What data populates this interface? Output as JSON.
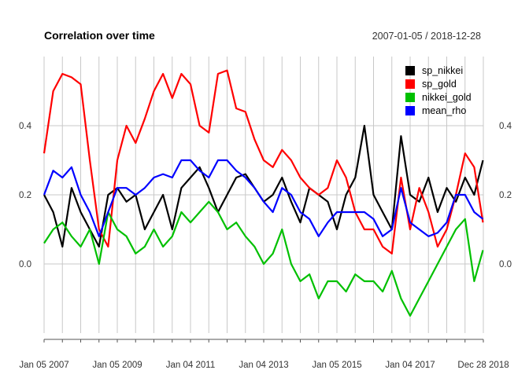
{
  "chart_data": {
    "type": "line",
    "title": "Correlation over time",
    "subtitle": "2007-01-05 / 2018-12-28",
    "x_start": "2007-01-05",
    "x_end": "2018-12-28",
    "x_tick_labels": [
      "Jan 05 2007",
      "Jan 05 2009",
      "Jan 04 2011",
      "Jan 04 2013",
      "Jan 05 2015",
      "Jan 04 2017",
      "Dec 28 2018"
    ],
    "x_tick_years": [
      2007.0,
      2007.5,
      2008.0,
      2008.5,
      2009.0,
      2009.5,
      2010.0,
      2010.5,
      2011.0,
      2011.5,
      2012.0,
      2012.5,
      2013.0,
      2013.5,
      2014.0,
      2014.5,
      2015.0,
      2015.5,
      2016.0,
      2016.5,
      2017.0,
      2017.5,
      2018.0,
      2018.5,
      2019.0
    ],
    "ylim": [
      -0.2,
      0.6
    ],
    "y_ticks": [
      0.0,
      0.2,
      0.4
    ],
    "y_tick_labels": [
      "0.0",
      "0.2",
      "0.4"
    ],
    "grid": true,
    "legend_position": "top-right",
    "series": [
      {
        "name": "sp_nikkei",
        "color": "#000000",
        "x": [
          2007.0,
          2007.25,
          2007.5,
          2007.75,
          2008.0,
          2008.25,
          2008.5,
          2008.75,
          2009.0,
          2009.25,
          2009.5,
          2009.75,
          2010.0,
          2010.25,
          2010.5,
          2010.75,
          2011.0,
          2011.25,
          2011.5,
          2011.75,
          2012.0,
          2012.25,
          2012.5,
          2012.75,
          2013.0,
          2013.25,
          2013.5,
          2013.75,
          2014.0,
          2014.25,
          2014.5,
          2014.75,
          2015.0,
          2015.25,
          2015.5,
          2015.75,
          2016.0,
          2016.25,
          2016.5,
          2016.75,
          2017.0,
          2017.25,
          2017.5,
          2017.75,
          2018.0,
          2018.25,
          2018.5,
          2018.75,
          2018.99
        ],
        "y": [
          0.2,
          0.15,
          0.05,
          0.22,
          0.15,
          0.1,
          0.05,
          0.2,
          0.22,
          0.18,
          0.2,
          0.1,
          0.15,
          0.2,
          0.1,
          0.22,
          0.25,
          0.28,
          0.22,
          0.15,
          0.2,
          0.25,
          0.26,
          0.22,
          0.18,
          0.2,
          0.25,
          0.18,
          0.12,
          0.22,
          0.2,
          0.18,
          0.1,
          0.2,
          0.25,
          0.4,
          0.2,
          0.15,
          0.1,
          0.37,
          0.2,
          0.18,
          0.25,
          0.15,
          0.22,
          0.18,
          0.25,
          0.2,
          0.3
        ]
      },
      {
        "name": "sp_gold",
        "color": "#ff0000",
        "x": [
          2007.0,
          2007.25,
          2007.5,
          2007.75,
          2008.0,
          2008.25,
          2008.5,
          2008.75,
          2009.0,
          2009.25,
          2009.5,
          2009.75,
          2010.0,
          2010.25,
          2010.5,
          2010.75,
          2011.0,
          2011.25,
          2011.5,
          2011.75,
          2012.0,
          2012.25,
          2012.5,
          2012.75,
          2013.0,
          2013.25,
          2013.5,
          2013.75,
          2014.0,
          2014.25,
          2014.5,
          2014.75,
          2015.0,
          2015.25,
          2015.5,
          2015.75,
          2016.0,
          2016.25,
          2016.5,
          2016.75,
          2017.0,
          2017.25,
          2017.5,
          2017.75,
          2018.0,
          2018.25,
          2018.5,
          2018.75,
          2018.99
        ],
        "y": [
          0.32,
          0.5,
          0.55,
          0.54,
          0.52,
          0.3,
          0.1,
          0.05,
          0.3,
          0.4,
          0.35,
          0.42,
          0.5,
          0.55,
          0.48,
          0.55,
          0.52,
          0.4,
          0.38,
          0.55,
          0.56,
          0.45,
          0.44,
          0.36,
          0.3,
          0.28,
          0.33,
          0.3,
          0.25,
          0.22,
          0.2,
          0.22,
          0.3,
          0.25,
          0.15,
          0.1,
          0.1,
          0.05,
          0.03,
          0.25,
          0.1,
          0.22,
          0.15,
          0.05,
          0.1,
          0.2,
          0.32,
          0.28,
          0.12
        ]
      },
      {
        "name": "nikkei_gold",
        "color": "#00c000",
        "x": [
          2007.0,
          2007.25,
          2007.5,
          2007.75,
          2008.0,
          2008.25,
          2008.5,
          2008.75,
          2009.0,
          2009.25,
          2009.5,
          2009.75,
          2010.0,
          2010.25,
          2010.5,
          2010.75,
          2011.0,
          2011.25,
          2011.5,
          2011.75,
          2012.0,
          2012.25,
          2012.5,
          2012.75,
          2013.0,
          2013.25,
          2013.5,
          2013.75,
          2014.0,
          2014.25,
          2014.5,
          2014.75,
          2015.0,
          2015.25,
          2015.5,
          2015.75,
          2016.0,
          2016.25,
          2016.5,
          2016.75,
          2017.0,
          2017.25,
          2017.5,
          2017.75,
          2018.0,
          2018.25,
          2018.5,
          2018.75,
          2018.99
        ],
        "y": [
          0.06,
          0.1,
          0.12,
          0.08,
          0.05,
          0.1,
          0.0,
          0.15,
          0.1,
          0.08,
          0.03,
          0.05,
          0.1,
          0.05,
          0.08,
          0.15,
          0.12,
          0.15,
          0.18,
          0.15,
          0.1,
          0.12,
          0.08,
          0.05,
          0.0,
          0.03,
          0.1,
          0.0,
          -0.05,
          -0.03,
          -0.1,
          -0.05,
          -0.05,
          -0.08,
          -0.03,
          -0.05,
          -0.05,
          -0.08,
          -0.02,
          -0.1,
          -0.15,
          -0.1,
          -0.05,
          0.0,
          0.05,
          0.1,
          0.13,
          -0.05,
          0.04
        ]
      },
      {
        "name": "mean_rho",
        "color": "#0000ff",
        "x": [
          2007.0,
          2007.25,
          2007.5,
          2007.75,
          2008.0,
          2008.25,
          2008.5,
          2008.75,
          2009.0,
          2009.25,
          2009.5,
          2009.75,
          2010.0,
          2010.25,
          2010.5,
          2010.75,
          2011.0,
          2011.25,
          2011.5,
          2011.75,
          2012.0,
          2012.25,
          2012.5,
          2012.75,
          2013.0,
          2013.25,
          2013.5,
          2013.75,
          2014.0,
          2014.25,
          2014.5,
          2014.75,
          2015.0,
          2015.25,
          2015.5,
          2015.75,
          2016.0,
          2016.25,
          2016.5,
          2016.75,
          2017.0,
          2017.25,
          2017.5,
          2017.75,
          2018.0,
          2018.25,
          2018.5,
          2018.75,
          2018.99
        ],
        "y": [
          0.2,
          0.27,
          0.25,
          0.28,
          0.2,
          0.15,
          0.08,
          0.15,
          0.22,
          0.22,
          0.2,
          0.22,
          0.25,
          0.26,
          0.25,
          0.3,
          0.3,
          0.27,
          0.25,
          0.3,
          0.3,
          0.27,
          0.25,
          0.22,
          0.18,
          0.15,
          0.22,
          0.2,
          0.15,
          0.13,
          0.08,
          0.12,
          0.15,
          0.15,
          0.15,
          0.15,
          0.13,
          0.08,
          0.1,
          0.22,
          0.12,
          0.1,
          0.08,
          0.09,
          0.12,
          0.2,
          0.2,
          0.15,
          0.13
        ]
      }
    ]
  }
}
